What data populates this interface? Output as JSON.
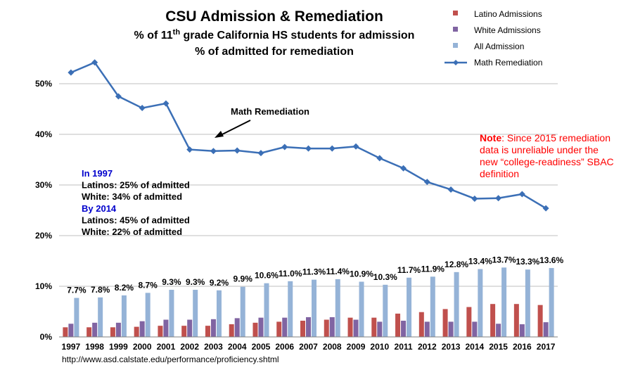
{
  "chart_data": {
    "type": "bar+line",
    "title": "CSU Admission & Remediation",
    "subtitle_lines": [
      {
        "pre": "% of 11",
        "sup": "th",
        "post": " grade California HS students for admission"
      },
      {
        "pre": "% of admitted for remediation",
        "sup": "",
        "post": ""
      }
    ],
    "categories": [
      "1997",
      "1998",
      "1999",
      "2000",
      "2001",
      "2002",
      "2003",
      "2004",
      "2005",
      "2006",
      "2007",
      "2008",
      "2009",
      "2010",
      "2011",
      "2012",
      "2013",
      "2014",
      "2015",
      "2016",
      "2017"
    ],
    "ylim": [
      0,
      60
    ],
    "yticks": [
      0,
      10,
      20,
      30,
      40,
      50
    ],
    "ytick_labels": [
      "0%",
      "10%",
      "20%",
      "30%",
      "40%",
      "50%"
    ],
    "grid": true,
    "legend_position": "top-right",
    "bar_series": [
      {
        "name": "Latino Admissions",
        "color": "#c0504d",
        "values": [
          1.9,
          1.9,
          1.9,
          2.0,
          2.2,
          2.2,
          2.2,
          2.5,
          2.8,
          3.0,
          3.2,
          3.4,
          3.8,
          3.8,
          4.6,
          4.9,
          5.5,
          5.9,
          6.5,
          6.5,
          6.3
        ]
      },
      {
        "name": "White Admissions",
        "color": "#8064a2",
        "values": [
          2.6,
          2.8,
          2.8,
          3.1,
          3.4,
          3.4,
          3.5,
          3.7,
          3.8,
          3.8,
          3.9,
          3.9,
          3.4,
          3.0,
          3.2,
          3.0,
          3.0,
          3.0,
          2.6,
          2.5,
          2.9
        ]
      },
      {
        "name": "All Admission",
        "color": "#95b3d7",
        "values": [
          7.7,
          7.8,
          8.2,
          8.7,
          9.3,
          9.3,
          9.2,
          9.9,
          10.6,
          11.0,
          11.3,
          11.4,
          10.9,
          10.3,
          11.7,
          11.9,
          12.8,
          13.4,
          13.7,
          13.3,
          13.6
        ]
      }
    ],
    "all_admission_labels": [
      "7.7%",
      "7.8%",
      "8.2%",
      "8.7%",
      "9.3%",
      "9.3%",
      "9.2%",
      "9.9%",
      "10.6%",
      "11.0%",
      "11.3%",
      "11.4%",
      "10.9%",
      "10.3%",
      "11.7%",
      "11.9%",
      "12.8%",
      "13.4%",
      "13.7%",
      "13.3%",
      "13.6%"
    ],
    "line_series": {
      "name": "Math Remediation",
      "color": "#3b6fb6",
      "values": [
        52.2,
        54.2,
        47.5,
        45.2,
        46.1,
        37.0,
        36.7,
        36.8,
        36.3,
        37.5,
        37.2,
        37.2,
        37.6,
        35.3,
        33.3,
        30.6,
        29.1,
        27.3,
        27.4,
        28.2,
        25.4
      ]
    },
    "annotations": {
      "arrow_label": "Math Remediation",
      "stats": [
        {
          "text": "In 1997",
          "style": "blue"
        },
        {
          "text": "Latinos: 25% of admitted",
          "style": "black"
        },
        {
          "text": "White:   34% of admitted",
          "style": "black"
        },
        {
          "text": "By 2014",
          "style": "blue"
        },
        {
          "text": "Latinos: 45% of admitted",
          "style": "black"
        },
        {
          "text": "White:   22% of admitted",
          "style": "black"
        }
      ],
      "note_bold": "Note",
      "note_lines": [
        ": Since 2015 remediation",
        "data is unreliable under the",
        "new “college-readiness” SBAC",
        "definition"
      ]
    },
    "source": "http://www.asd.calstate.edu/performance/proficiency.shtml"
  }
}
